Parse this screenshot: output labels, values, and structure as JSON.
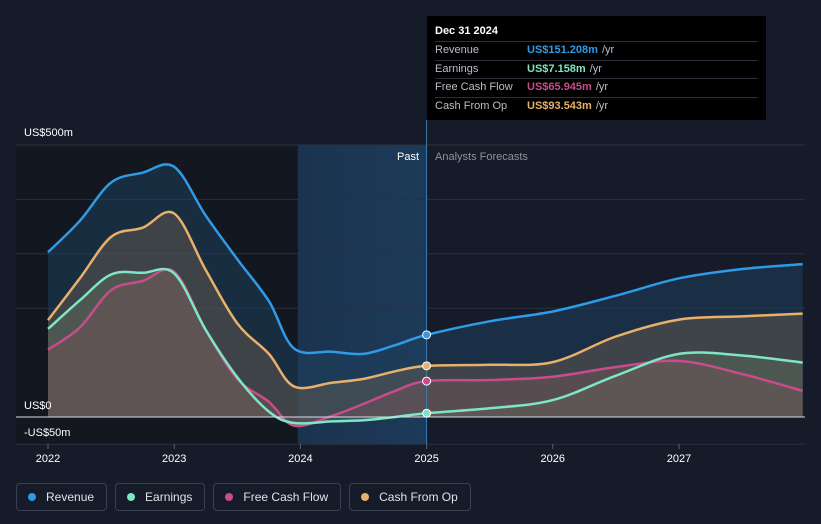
{
  "chart_data": {
    "type": "area",
    "title": "",
    "x_ticks": [
      "2022",
      "2023",
      "2024",
      "2025",
      "2026",
      "2027"
    ],
    "y_labels": [
      "US$500m",
      "US$0",
      "-US$50m"
    ],
    "ylim": [
      -50,
      500
    ],
    "xlim": [
      2021.78,
      2027.98
    ],
    "past_label": "Past",
    "forecast_label": "Analysts Forecasts",
    "past_end": 2025.0,
    "shade_start": 2023.98,
    "colors": {
      "revenue": "#2f9ae6",
      "earnings": "#7ee6c4",
      "fcf": "#c84c8c",
      "cfo": "#e8b06a"
    },
    "series": [
      {
        "key": "revenue",
        "name": "Revenue",
        "x": [
          2022.0,
          2022.25,
          2022.5,
          2022.75,
          2023.0,
          2023.25,
          2023.5,
          2023.75,
          2023.95,
          2024.25,
          2024.5,
          2024.75,
          2025.0,
          2025.5,
          2026.0,
          2026.5,
          2027.0,
          2027.5,
          2027.98
        ],
        "values": [
          303,
          360,
          431,
          449,
          460,
          370,
          290,
          213,
          126,
          120,
          116,
          132,
          151,
          176,
          194,
          223,
          255,
          272,
          281
        ]
      },
      {
        "key": "earnings",
        "name": "Earnings",
        "x": [
          2022.0,
          2022.25,
          2022.5,
          2022.75,
          2023.0,
          2023.25,
          2023.5,
          2023.75,
          2023.95,
          2024.25,
          2024.5,
          2024.75,
          2025.0,
          2025.5,
          2026.0,
          2026.5,
          2027.0,
          2027.5,
          2027.98
        ],
        "values": [
          162,
          214,
          262,
          265,
          264,
          160,
          73,
          10,
          -11,
          -8,
          -6,
          0,
          7,
          16,
          31,
          76,
          116,
          113,
          100
        ]
      },
      {
        "key": "fcf",
        "name": "Free Cash Flow",
        "x": [
          2022.0,
          2022.25,
          2022.5,
          2022.75,
          2023.0,
          2023.25,
          2023.5,
          2023.75,
          2023.95,
          2024.25,
          2024.5,
          2024.75,
          2025.0,
          2025.5,
          2026.0,
          2026.5,
          2027.0,
          2027.5,
          2027.98
        ],
        "values": [
          124,
          164,
          233,
          250,
          267,
          160,
          70,
          28,
          -16,
          2,
          24,
          48,
          66,
          68,
          74,
          92,
          103,
          79,
          48
        ]
      },
      {
        "key": "cfo",
        "name": "Cash From Op",
        "x": [
          2022.0,
          2022.25,
          2022.5,
          2022.75,
          2023.0,
          2023.25,
          2023.5,
          2023.75,
          2023.95,
          2024.25,
          2024.5,
          2024.75,
          2025.0,
          2025.5,
          2026.0,
          2026.5,
          2027.0,
          2027.5,
          2027.98
        ],
        "values": [
          178,
          254,
          331,
          348,
          374,
          270,
          172,
          116,
          56,
          63,
          70,
          84,
          94,
          96,
          101,
          148,
          179,
          185,
          190
        ]
      }
    ],
    "highlight_x": 2025.0,
    "tooltip": {
      "date": "Dec 31 2024",
      "rows": [
        {
          "label": "Revenue",
          "value": "US$151.208m",
          "unit": "/yr",
          "color": "#2f9ae6"
        },
        {
          "label": "Earnings",
          "value": "US$7.158m",
          "unit": "/yr",
          "color": "#7ee6c4"
        },
        {
          "label": "Free Cash Flow",
          "value": "US$65.945m",
          "unit": "/yr",
          "color": "#c84c8c"
        },
        {
          "label": "Cash From Op",
          "value": "US$93.543m",
          "unit": "/yr",
          "color": "#e8b06a"
        }
      ]
    }
  },
  "legend": [
    {
      "label": "Revenue",
      "color": "#2f9ae6"
    },
    {
      "label": "Earnings",
      "color": "#7ee6c4"
    },
    {
      "label": "Free Cash Flow",
      "color": "#c84c8c"
    },
    {
      "label": "Cash From Op",
      "color": "#e8b06a"
    }
  ]
}
